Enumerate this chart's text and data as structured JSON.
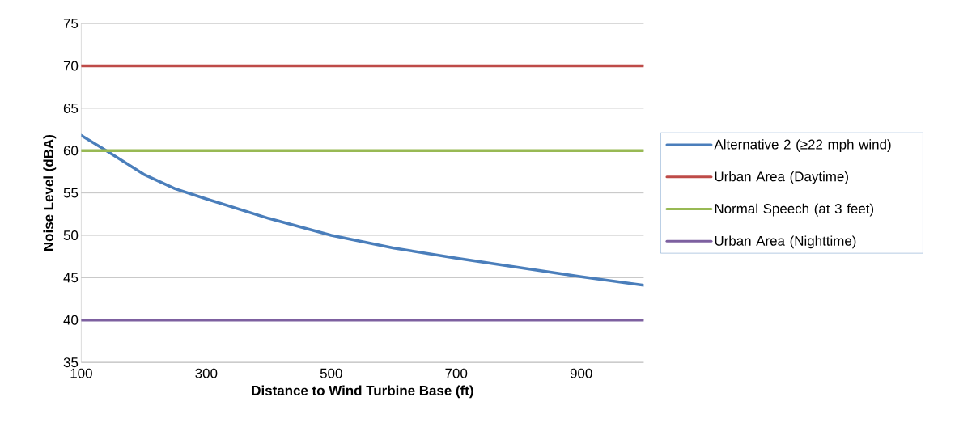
{
  "chart_data": {
    "type": "line",
    "xlabel": "Distance to Wind Turbine Base (ft)",
    "ylabel": "Noise Level (dBA)",
    "xlim": [
      100,
      1000
    ],
    "xticks": [
      100,
      300,
      500,
      700,
      900
    ],
    "ylim": [
      35,
      75
    ],
    "yticks": [
      35,
      40,
      45,
      50,
      55,
      60,
      65,
      70,
      75
    ],
    "grid": "y",
    "legend": "right",
    "marker": "none",
    "line_style": "solid",
    "series": [
      {
        "name": "Alternative 2 (≥22 mph wind)",
        "color": "#4a7ebb",
        "x": [
          100,
          140,
          200,
          250,
          300,
          400,
          500,
          600,
          700,
          800,
          900,
          1000
        ],
        "values": [
          61.8,
          60,
          57.2,
          55.5,
          54.3,
          52,
          50,
          48.5,
          47.3,
          46.2,
          45.1,
          44.1
        ]
      },
      {
        "name": "Urban Area (Daytime)",
        "color": "#be4b48",
        "x": [
          100,
          1000
        ],
        "values": [
          70,
          70
        ]
      },
      {
        "name": "Normal Speech (at 3 feet)",
        "color": "#98b954",
        "x": [
          100,
          1000
        ],
        "values": [
          60,
          60
        ]
      },
      {
        "name": "Urban Area (Nighttime)",
        "color": "#7d60a0",
        "x": [
          100,
          1000
        ],
        "values": [
          40,
          40
        ]
      }
    ]
  }
}
